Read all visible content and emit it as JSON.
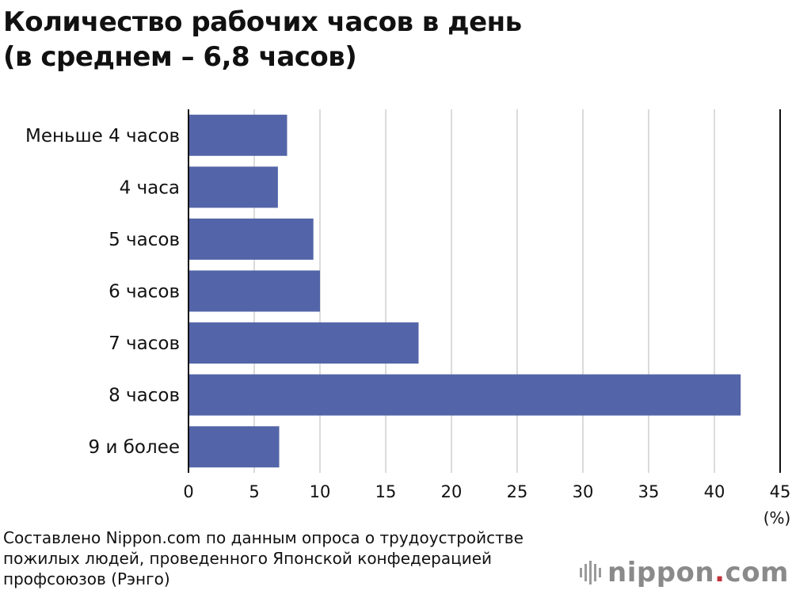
{
  "title": {
    "line1": "Количество рабочих часов в день",
    "line2": "(в среднем – 6,8 часов)"
  },
  "chart_data": {
    "type": "bar",
    "orientation": "horizontal",
    "categories": [
      "Меньше 4 часов",
      "4 часа",
      "5 часов",
      "6 часов",
      "7 часов",
      "8 часов",
      "9 и более"
    ],
    "values": [
      7.5,
      6.8,
      9.5,
      10.0,
      17.5,
      42.0,
      6.9
    ],
    "xlim": [
      0,
      45
    ],
    "xticks": [
      "0",
      "5",
      "10",
      "15",
      "20",
      "25",
      "30",
      "35",
      "40",
      "45"
    ],
    "x_unit": "(%)",
    "grid": true,
    "bar_color": "#5365a8"
  },
  "source": {
    "line1": "Составлено Nippon.com по данным опроса о трудоустройстве",
    "line2": "пожилых людей, проведенного Японской конфедерацией",
    "line3": "профсоюзов (Рэнго)"
  },
  "logo": {
    "text_main": "nippon",
    "text_dot": ".",
    "text_tld": "com",
    "icon": "nippon-bars-icon"
  }
}
